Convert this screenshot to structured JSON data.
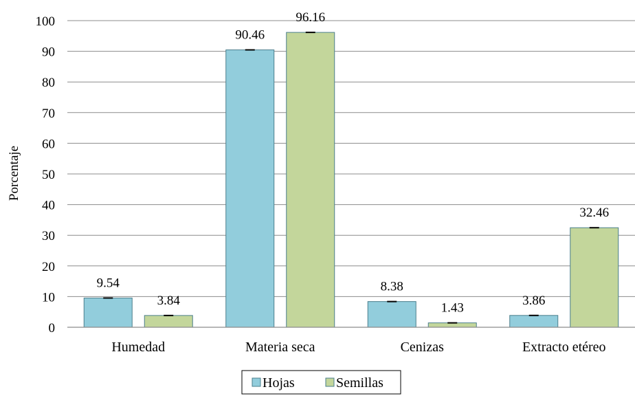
{
  "chart_data": {
    "type": "bar",
    "categories": [
      "Humedad",
      "Materia seca",
      "Cenizas",
      "Extracto etéreo"
    ],
    "series": [
      {
        "name": "Hojas",
        "values": [
          9.54,
          90.46,
          8.38,
          3.86
        ],
        "color": "#92cddc"
      },
      {
        "name": "Semillas",
        "values": [
          3.84,
          96.16,
          1.43,
          32.46
        ],
        "color": "#c3d69b"
      }
    ],
    "data_labels": [
      [
        "9.54",
        "90.46",
        "8.38",
        "3.86"
      ],
      [
        "3.84",
        "96.16",
        "1.43",
        "32.46"
      ]
    ],
    "ylabel": "Porcentaje",
    "xlabel": "",
    "ylim": [
      0,
      100
    ],
    "yticks": [
      0,
      10,
      20,
      30,
      40,
      50,
      60,
      70,
      80,
      90,
      100
    ],
    "grid": true,
    "legend": "bottom-center",
    "error_bars": true,
    "bar_edge_color": "#4a7f8c"
  }
}
